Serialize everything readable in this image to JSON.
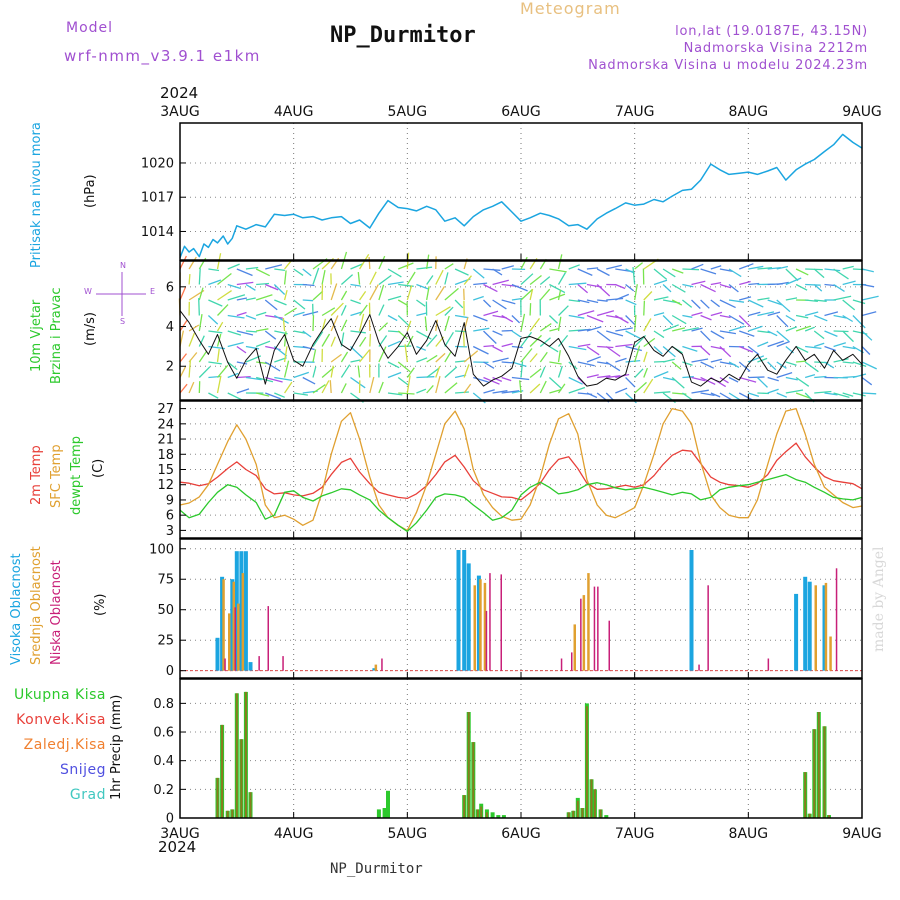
{
  "header": {
    "meteogram_label": "Meteogram",
    "station_title": "NP_Durmitor",
    "model_label": "Model",
    "model_name": "wrf-nmm_v3.9.1  e1km",
    "lonlat": "lon,lat (19.0187E, 43.15N)",
    "elevation": "Nadmorska Visina 2212m",
    "model_elevation": "Nadmorska Visina u modelu 2024.23m"
  },
  "footer": {
    "station": "NP_Durmitor"
  },
  "watermark": "made by Angel",
  "year_label": "2024",
  "dates": [
    "3AUG",
    "4AUG",
    "5AUG",
    "6AUG",
    "7AUG",
    "8AUG",
    "9AUG"
  ],
  "colors": {
    "pressure": "#1ba5e0",
    "temp2m": "#e8403a",
    "sfc": "#e0a030",
    "dewpt": "#2cc92c",
    "high_cloud": "#1ba5e0",
    "mid_cloud": "#e0a030",
    "low_cloud": "#c81f78",
    "total_precip": "#2cc92c",
    "conv_precip": "#e8403a",
    "frozen": "#f08030",
    "snow": "#5050e0",
    "graupel": "#40c8c0",
    "title_purple": "#a050d0",
    "title_orange": "#e8c080"
  },
  "compass": {
    "w": "W",
    "e": "E",
    "n": "N",
    "s": "S"
  },
  "chart_data": [
    {
      "type": "line",
      "panel": "pressure",
      "ylabel": "Pritisak na nivou mora",
      "unit": "(hPa)",
      "yticks": [
        "1014",
        "1017",
        "1020"
      ],
      "ylim": [
        1011.5,
        1023.5
      ],
      "x_days": [
        0,
        0.04,
        0.08,
        0.12,
        0.17,
        0.21,
        0.25,
        0.29,
        0.33,
        0.38,
        0.42,
        0.46,
        0.5,
        0.58,
        0.67,
        0.75,
        0.83,
        0.92,
        1.0,
        1.08,
        1.17,
        1.25,
        1.33,
        1.42,
        1.5,
        1.58,
        1.67,
        1.75,
        1.83,
        1.92,
        2.0,
        2.08,
        2.17,
        2.25,
        2.33,
        2.42,
        2.5,
        2.58,
        2.67,
        2.75,
        2.83,
        2.92,
        3.0,
        3.08,
        3.17,
        3.25,
        3.33,
        3.42,
        3.5,
        3.58,
        3.67,
        3.75,
        3.83,
        3.92,
        4.0,
        4.08,
        4.17,
        4.25,
        4.33,
        4.42,
        4.5,
        4.58,
        4.67,
        4.75,
        4.83,
        4.92,
        5.0,
        5.08,
        5.17,
        5.25,
        5.33,
        5.42,
        5.5,
        5.58,
        5.67,
        5.75,
        5.83,
        5.92,
        6.0
      ],
      "values": [
        1011.7,
        1012.7,
        1012.2,
        1012.5,
        1011.8,
        1012.9,
        1012.6,
        1013.3,
        1013.0,
        1013.6,
        1012.9,
        1013.4,
        1014.5,
        1014.2,
        1014.6,
        1014.4,
        1015.5,
        1015.4,
        1015.5,
        1015.2,
        1015.3,
        1015.0,
        1015.2,
        1015.3,
        1014.7,
        1015.0,
        1014.3,
        1015.6,
        1016.7,
        1016.1,
        1016.0,
        1015.8,
        1016.2,
        1015.9,
        1014.9,
        1015.2,
        1014.5,
        1015.3,
        1015.9,
        1016.2,
        1016.6,
        1015.7,
        1014.9,
        1015.2,
        1015.6,
        1015.4,
        1015.1,
        1014.5,
        1014.6,
        1014.2,
        1015.1,
        1015.6,
        1016.0,
        1016.5,
        1016.3,
        1016.4,
        1016.8,
        1016.6,
        1017.1,
        1017.6,
        1017.7,
        1018.5,
        1019.9,
        1019.4,
        1019.0,
        1019.1,
        1019.2,
        1019.0,
        1019.3,
        1019.6,
        1018.5,
        1019.4,
        1019.9,
        1020.3,
        1021.0,
        1021.6,
        1022.5,
        1021.8,
        1021.3
      ]
    },
    {
      "type": "line",
      "panel": "wind",
      "ylabel": [
        "10m Vjetar",
        "Brzina i Pravac"
      ],
      "unit": "(m/s)",
      "yticks": [
        "2",
        "4",
        "6"
      ],
      "ylim": [
        0.3,
        7.3
      ],
      "x_days": [
        0,
        0.08,
        0.17,
        0.25,
        0.33,
        0.42,
        0.5,
        0.58,
        0.67,
        0.75,
        0.83,
        0.92,
        1.0,
        1.08,
        1.17,
        1.25,
        1.33,
        1.42,
        1.5,
        1.58,
        1.67,
        1.75,
        1.83,
        1.92,
        2.0,
        2.08,
        2.17,
        2.25,
        2.33,
        2.42,
        2.5,
        2.58,
        2.67,
        2.75,
        2.83,
        2.92,
        3.0,
        3.08,
        3.17,
        3.25,
        3.33,
        3.42,
        3.5,
        3.58,
        3.67,
        3.75,
        3.83,
        3.92,
        4.0,
        4.08,
        4.17,
        4.25,
        4.33,
        4.42,
        4.5,
        4.58,
        4.67,
        4.75,
        4.83,
        4.92,
        5.0,
        5.08,
        5.17,
        5.25,
        5.33,
        5.42,
        5.5,
        5.58,
        5.67,
        5.75,
        5.83,
        5.92,
        6.0
      ],
      "values": [
        4.8,
        4.2,
        3.3,
        2.6,
        3.6,
        2.2,
        1.4,
        2.3,
        2.9,
        1.1,
        2.8,
        3.6,
        2.3,
        2.0,
        3.1,
        3.8,
        4.4,
        3.1,
        2.8,
        3.6,
        4.6,
        3.2,
        2.4,
        3.0,
        3.7,
        2.6,
        3.3,
        4.3,
        3.1,
        2.5,
        4.2,
        1.6,
        1.0,
        1.3,
        1.5,
        1.9,
        3.4,
        3.5,
        3.3,
        3.0,
        3.4,
        2.5,
        1.5,
        1.0,
        1.1,
        1.4,
        1.3,
        1.6,
        3.2,
        3.5,
        2.8,
        2.5,
        3.0,
        2.6,
        1.2,
        1.0,
        1.4,
        1.2,
        1.6,
        1.3,
        2.1,
        2.6,
        1.8,
        1.6,
        2.3,
        3.0,
        2.3,
        2.6,
        1.9,
        2.8,
        2.3,
        2.6,
        2.1
      ]
    },
    {
      "type": "line",
      "panel": "temperature",
      "ylabel": [
        "2m Temp",
        "SFC Temp",
        "dewpt Temp"
      ],
      "unit": "(C)",
      "yticks": [
        "3",
        "6",
        "9",
        "12",
        "15",
        "18",
        "21",
        "24",
        "27"
      ],
      "ylim": [
        1.5,
        28.5
      ],
      "x_days": [
        0,
        0.08,
        0.17,
        0.25,
        0.33,
        0.42,
        0.5,
        0.58,
        0.67,
        0.75,
        0.83,
        0.92,
        1.0,
        1.08,
        1.17,
        1.25,
        1.33,
        1.42,
        1.5,
        1.58,
        1.67,
        1.75,
        1.83,
        1.92,
        2.0,
        2.08,
        2.17,
        2.25,
        2.33,
        2.42,
        2.5,
        2.58,
        2.67,
        2.75,
        2.83,
        2.92,
        3.0,
        3.08,
        3.17,
        3.25,
        3.33,
        3.42,
        3.5,
        3.58,
        3.67,
        3.75,
        3.83,
        3.92,
        4.0,
        4.08,
        4.17,
        4.25,
        4.33,
        4.42,
        4.5,
        4.58,
        4.67,
        4.75,
        4.83,
        4.92,
        5.0,
        5.08,
        5.17,
        5.25,
        5.33,
        5.42,
        5.5,
        5.58,
        5.67,
        5.75,
        5.83,
        5.92,
        6.0
      ],
      "series": [
        {
          "name": "2m Temp",
          "color_key": "temp2m",
          "values": [
            12.5,
            12.3,
            11.8,
            12.2,
            13.5,
            15.2,
            16.5,
            15.0,
            13.8,
            11.2,
            10.2,
            10.4,
            10.0,
            9.8,
            10.3,
            11.5,
            14.0,
            16.4,
            17.2,
            14.5,
            12.2,
            10.5,
            10.0,
            9.5,
            9.3,
            10.2,
            11.8,
            14.0,
            16.5,
            17.8,
            15.5,
            12.8,
            11.0,
            10.3,
            9.6,
            9.5,
            9.0,
            10.4,
            12.3,
            15.0,
            17.0,
            17.5,
            15.2,
            12.3,
            11.1,
            11.2,
            11.5,
            11.9,
            11.5,
            12.0,
            13.8,
            16.0,
            17.8,
            18.8,
            18.6,
            16.2,
            13.5,
            12.5,
            12.0,
            11.8,
            11.5,
            12.2,
            14.0,
            16.8,
            18.5,
            20.2,
            17.5,
            15.5,
            13.6,
            12.8,
            12.5,
            12.2,
            11.2
          ]
        },
        {
          "name": "SFC Temp",
          "color_key": "sfc",
          "values": [
            8.0,
            8.4,
            9.6,
            12.0,
            16.0,
            20.5,
            23.8,
            21.0,
            16.0,
            8.0,
            5.5,
            6.0,
            5.2,
            4.0,
            5.0,
            10.5,
            18.0,
            24.5,
            26.2,
            21.0,
            13.5,
            8.0,
            5.5,
            4.0,
            3.0,
            6.5,
            12.0,
            18.0,
            24.0,
            26.5,
            23.0,
            15.0,
            10.0,
            7.5,
            5.8,
            5.0,
            5.2,
            8.0,
            13.5,
            20.0,
            25.0,
            26.0,
            22.0,
            13.0,
            8.0,
            6.0,
            5.5,
            6.5,
            7.5,
            12.0,
            18.0,
            24.0,
            27.0,
            26.5,
            24.0,
            16.5,
            10.0,
            7.5,
            6.0,
            5.5,
            5.5,
            9.0,
            16.0,
            22.0,
            26.5,
            27.0,
            22.0,
            16.0,
            11.5,
            10.0,
            8.5,
            7.5,
            7.8
          ]
        },
        {
          "name": "dewpt Temp",
          "color_key": "dewpt",
          "values": [
            7.0,
            5.5,
            6.2,
            8.5,
            10.5,
            12.0,
            11.5,
            10.0,
            8.5,
            5.2,
            6.0,
            10.5,
            10.8,
            9.5,
            8.8,
            9.8,
            10.4,
            11.2,
            11.0,
            10.0,
            9.0,
            7.0,
            5.5,
            4.0,
            2.8,
            4.5,
            7.0,
            9.5,
            10.2,
            10.0,
            9.5,
            8.0,
            6.5,
            5.0,
            5.5,
            7.0,
            10.0,
            11.5,
            12.5,
            11.5,
            10.2,
            10.5,
            11.0,
            12.0,
            12.4,
            12.0,
            11.4,
            11.0,
            11.2,
            11.5,
            11.0,
            10.5,
            10.0,
            10.5,
            10.2,
            9.0,
            9.5,
            11.0,
            11.5,
            11.8,
            12.0,
            12.5,
            13.0,
            13.5,
            14.0,
            13.0,
            12.5,
            11.5,
            10.5,
            9.5,
            9.2,
            9.0,
            9.5
          ]
        }
      ]
    },
    {
      "type": "bar",
      "panel": "cloud_cover",
      "ylabel": [
        "Visoka Oblacnost",
        "Srednja Oblacnost",
        "Niska Oblacnost"
      ],
      "unit": "(%)",
      "yticks": [
        "0",
        "25",
        "50",
        "75",
        "100"
      ],
      "ylim": [
        -6,
        108
      ],
      "x_days": [
        0.33,
        0.37,
        0.42,
        0.46,
        0.5,
        0.54,
        0.58,
        0.62,
        0.67,
        0.71,
        0.75,
        0.8,
        0.88,
        1.0,
        1.17,
        1.71,
        1.75,
        1.83,
        2.17,
        2.25,
        2.35,
        2.4,
        2.45,
        2.5,
        2.54,
        2.58,
        2.63,
        2.67,
        2.7,
        2.75,
        2.8,
        2.87,
        3.33,
        3.42,
        3.46,
        3.5,
        3.54,
        3.58,
        3.62,
        3.65,
        3.7,
        3.75,
        3.83,
        4.12,
        4.5,
        4.54,
        4.58,
        4.62,
        4.7,
        4.75,
        5.15,
        5.42,
        5.46,
        5.5,
        5.54,
        5.58,
        5.62,
        5.67,
        5.71,
        5.75
      ],
      "series": [
        {
          "name": "Visoka Oblacnost",
          "color_key": "high_cloud",
          "values": [
            27,
            77,
            0,
            75,
            98,
            98,
            98,
            7,
            0,
            0,
            0,
            0,
            0,
            0,
            0,
            2,
            0,
            0,
            0,
            0,
            0,
            0,
            99,
            99,
            88,
            0,
            78,
            0,
            0,
            0,
            0,
            0,
            0,
            0,
            0,
            0,
            0,
            0,
            0,
            0,
            0,
            0,
            0,
            0,
            99,
            0,
            0,
            0,
            0,
            0,
            0,
            63,
            0,
            77,
            73,
            0,
            0,
            70,
            0,
            0
          ]
        },
        {
          "name": "Srednja Oblacnost",
          "color_key": "mid_cloud",
          "values": [
            0,
            75,
            47,
            73,
            55,
            80,
            0,
            0,
            0,
            0,
            0,
            0,
            0,
            0,
            0,
            5,
            0,
            0,
            0,
            0,
            0,
            0,
            0,
            0,
            0,
            70,
            75,
            72,
            0,
            0,
            0,
            0,
            0,
            0,
            38,
            0,
            62,
            80,
            0,
            0,
            0,
            0,
            0,
            0,
            0,
            0,
            0,
            0,
            0,
            0,
            0,
            0,
            0,
            0,
            0,
            70,
            0,
            72,
            28,
            0
          ]
        },
        {
          "name": "Niska Oblacnost",
          "color_key": "low_cloud",
          "values": [
            0,
            10,
            0,
            52,
            0,
            0,
            0,
            0,
            12,
            0,
            53,
            0,
            12,
            0,
            0,
            0,
            10,
            0,
            0,
            0,
            0,
            0,
            0,
            0,
            0,
            0,
            0,
            49,
            80,
            0,
            79,
            0,
            10,
            15,
            0,
            59,
            0,
            0,
            69,
            69,
            0,
            41,
            0,
            0,
            0,
            5,
            0,
            70,
            0,
            0,
            10,
            0,
            0,
            0,
            0,
            0,
            0,
            0,
            0,
            84
          ]
        }
      ]
    },
    {
      "type": "bar",
      "panel": "precipitation",
      "ylabel": "1hr Precip (mm)",
      "legend": [
        "Ukupna Kisa",
        "Konvek.Kisa",
        "Zaledj.Kisa",
        "Snijeg",
        "Grad"
      ],
      "yticks": [
        "0",
        "0.2",
        "0.4",
        "0.6",
        "0.8"
      ],
      "ylim": [
        0,
        0.97
      ],
      "x_days": [
        0.33,
        0.37,
        0.42,
        0.46,
        0.5,
        0.54,
        0.58,
        0.62,
        0.67,
        1.75,
        1.8,
        1.83,
        2.5,
        2.54,
        2.58,
        2.62,
        2.65,
        2.7,
        2.75,
        2.8,
        2.85,
        3.42,
        3.46,
        3.5,
        3.54,
        3.58,
        3.62,
        3.65,
        3.7,
        3.75,
        5.5,
        5.54,
        5.58,
        5.62,
        5.67,
        5.71
      ],
      "series": [
        {
          "name": "Ukupna Kisa",
          "color_key": "total_precip",
          "values": [
            0.28,
            0.65,
            0.05,
            0.06,
            0.87,
            0.55,
            0.88,
            0.18,
            0.0,
            0.06,
            0.07,
            0.19,
            0.16,
            0.74,
            0.53,
            0.06,
            0.1,
            0.06,
            0.04,
            0.02,
            0.02,
            0.04,
            0.05,
            0.14,
            0.07,
            0.8,
            0.27,
            0.2,
            0.06,
            0.02,
            0.32,
            0.03,
            0.62,
            0.74,
            0.64,
            0.02
          ]
        },
        {
          "name": "Konvek.Kisa",
          "color_key": "conv_precip",
          "values": [
            0.28,
            0.65,
            0.05,
            0.06,
            0.87,
            0.55,
            0.88,
            0.18,
            0.0,
            0,
            0,
            0,
            0.16,
            0.74,
            0.53,
            0.06,
            0.08,
            0.04,
            0,
            0,
            0,
            0.04,
            0.05,
            0.12,
            0.07,
            0.78,
            0.27,
            0.2,
            0.06,
            0,
            0.32,
            0.03,
            0.62,
            0.74,
            0.64,
            0.02
          ]
        }
      ],
      "xlabel": "NP_Durmitor"
    }
  ]
}
